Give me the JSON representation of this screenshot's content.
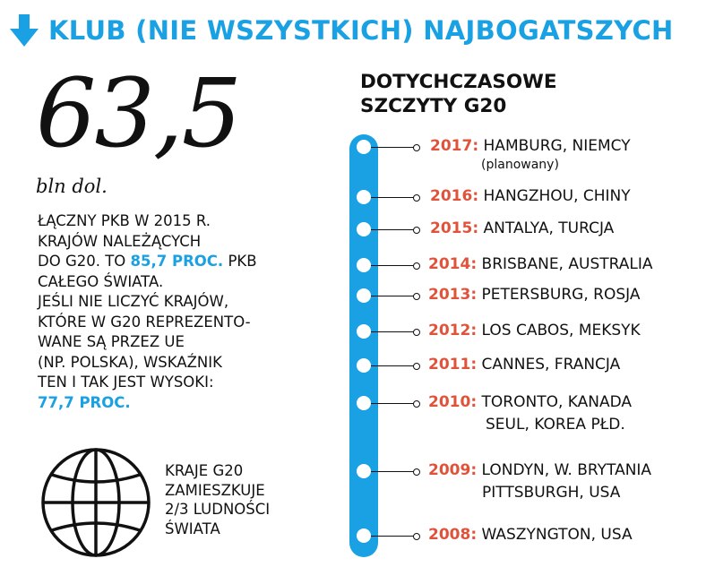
{
  "header": {
    "icon": "arrow-down-icon",
    "title": "KLUB (NIE WSZYSTKICH) NAJBOGATSZYCH",
    "accent_color": "#1aa1e3"
  },
  "gdp": {
    "value": "63,5",
    "unit": "bln dol.",
    "lines": [
      [
        {
          "t": "ŁĄCZNY PKB W 2015 R."
        }
      ],
      [
        {
          "t": "KRAJÓW NALEŻĄCYCH"
        }
      ],
      [
        {
          "t": "DO G20. TO "
        },
        {
          "t": "85,7 PROC.",
          "hl": true
        },
        {
          "t": " PKB"
        }
      ],
      [
        {
          "t": "CAŁEGO ŚWIATA."
        }
      ],
      [
        {
          "t": "JEŚLI NIE LICZYĆ KRAJÓW,"
        }
      ],
      [
        {
          "t": "KTÓRE W G20 REPREZENTO-"
        }
      ],
      [
        {
          "t": "WANE SĄ PRZEZ UE"
        }
      ],
      [
        {
          "t": "(NP. POLSKA), WSKAŹNIK"
        }
      ],
      [
        {
          "t": "TEN I TAK JEST WYSOKI:"
        }
      ],
      [
        {
          "t": "77,7 PROC.",
          "hl": true
        }
      ]
    ]
  },
  "population": {
    "icon": "globe-icon",
    "lines": [
      "KRAJE G20",
      "ZAMIESZKUJE",
      "2/3 LUDNOŚCI",
      "ŚWIATA"
    ]
  },
  "timeline": {
    "title_lines": [
      "DOTYCHCZASOWE",
      "SZCZYTY G20"
    ],
    "year_color": "#e0533b",
    "bar_color": "#1aa1e3",
    "summits": [
      {
        "year": "2017:",
        "place": "HAMBURG, NIEMCY",
        "note": "(planowany)"
      },
      {
        "year": "2016:",
        "place": "HANGZHOU, CHINY"
      },
      {
        "year": "2015:",
        "place": "ANTALYA, TURCJA"
      },
      {
        "year": "2014:",
        "place": "BRISBANE, AUSTRALIA"
      },
      {
        "year": "2013:",
        "place": "PETERSBURG, ROSJA"
      },
      {
        "year": "2012:",
        "place": "LOS CABOS, MEKSYK"
      },
      {
        "year": "2011:",
        "place": "CANNES, FRANCJA"
      },
      {
        "year": "2010:",
        "place": "TORONTO, KANADA",
        "place2": "SEUL, KOREA PŁD."
      },
      {
        "year": "2009:",
        "place": "LONDYN, W. BRYTANIA",
        "place2": "PITTSBURGH, USA"
      },
      {
        "year": "2008:",
        "place": "WASZYNGTON, USA"
      }
    ]
  }
}
